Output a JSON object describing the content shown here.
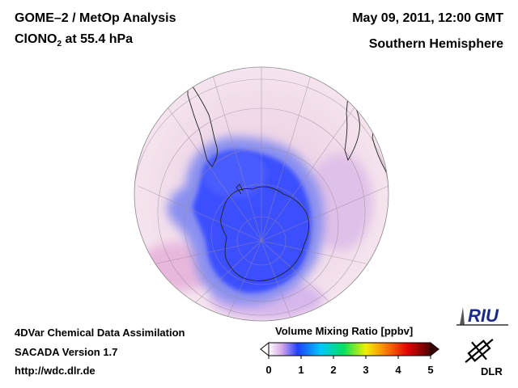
{
  "header": {
    "title_line1": "GOME–2 / MetOp Analysis",
    "title_line2_prefix": "ClONO",
    "title_line2_sub": "2",
    "title_line2_suffix": " at 55.4 hPa",
    "date": "May 09, 2011, 12:00 GMT",
    "region": "Southern Hemisphere"
  },
  "footer": {
    "line1": "4DVar Chemical Data Assimilation",
    "line2": "SACADA Version 1.7",
    "line3": "http://wdc.dlr.de"
  },
  "colorbar": {
    "title": "Volume Mixing Ratio [ppbv]",
    "ticks": [
      "0",
      "1",
      "2",
      "3",
      "4",
      "5"
    ],
    "stops": [
      "#ffffff",
      "#d8a8e8",
      "#2040ff",
      "#00c8ff",
      "#00e060",
      "#f0f000",
      "#ff8000",
      "#e00000",
      "#500000"
    ]
  },
  "logos": {
    "riu": "RIU",
    "dlr": "DLR"
  },
  "map": {
    "projection": "orthographic-south-polar",
    "background_color": "#f2dbe8",
    "low_color": "#3a50ff",
    "mid_color": "#c0a8e8"
  }
}
